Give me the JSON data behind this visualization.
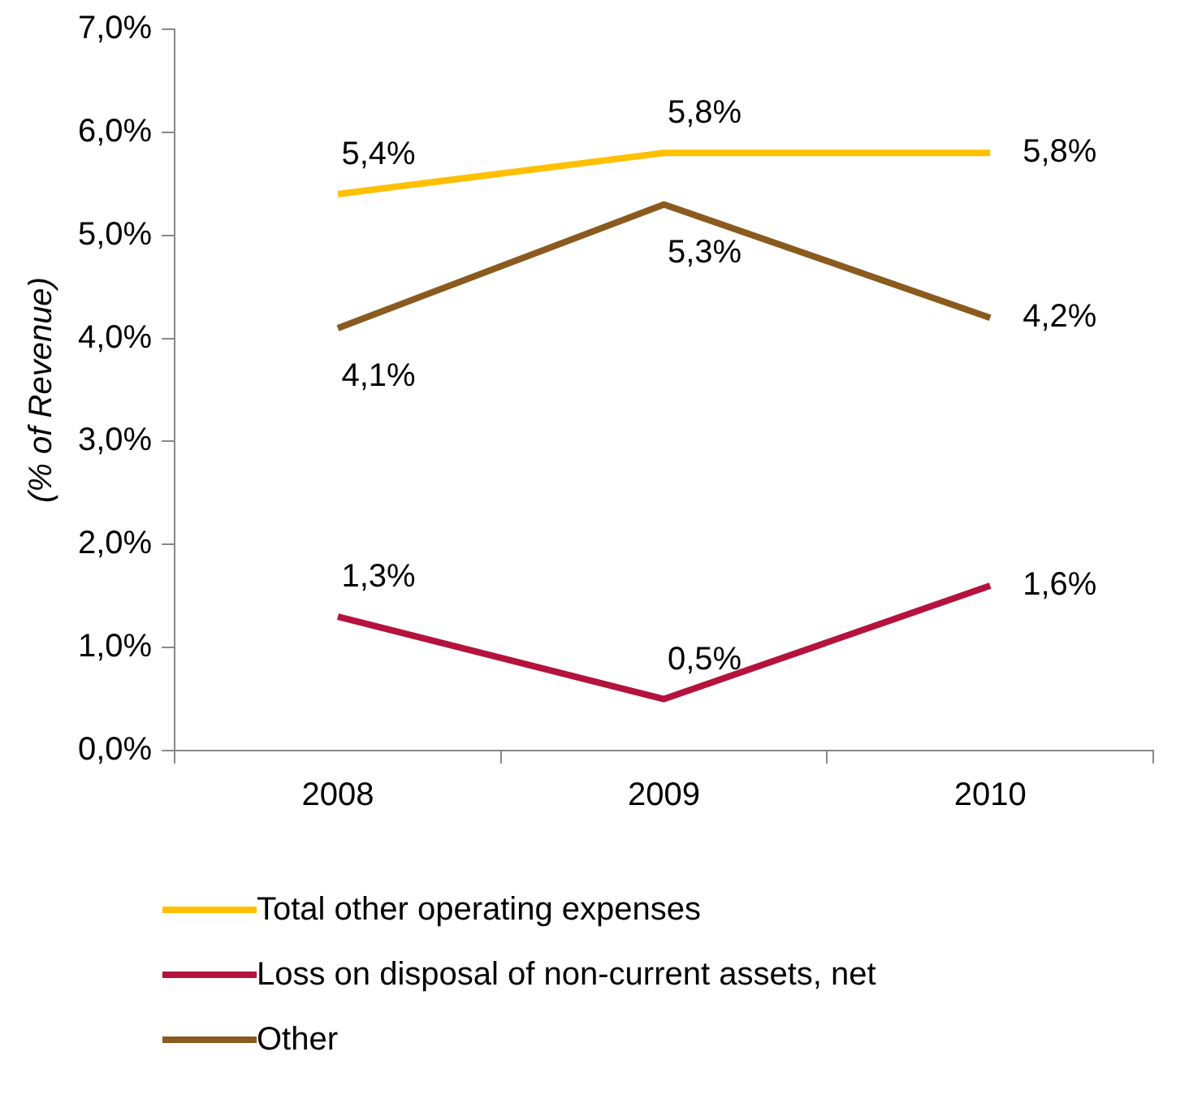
{
  "chart_data": {
    "type": "line",
    "ylabel": "(% of Revenue)",
    "categories": [
      "2008",
      "2009",
      "2010"
    ],
    "ylim": [
      0,
      7
    ],
    "yticks": [
      {
        "value": 0,
        "label": "0,0%"
      },
      {
        "value": 1,
        "label": "1,0%"
      },
      {
        "value": 2,
        "label": "2,0%"
      },
      {
        "value": 3,
        "label": "3,0%"
      },
      {
        "value": 4,
        "label": "4,0%"
      },
      {
        "value": 5,
        "label": "5,0%"
      },
      {
        "value": 6,
        "label": "6,0%"
      },
      {
        "value": 7,
        "label": "7,0%"
      }
    ],
    "grid": false,
    "legend": "bottom",
    "marker": "none",
    "line_style": "solid",
    "series": [
      {
        "name": "Total other operating expenses",
        "color": "#ffc000",
        "values": [
          5.4,
          5.8,
          5.8
        ],
        "value_labels": [
          "5,4%",
          "5,8%",
          "5,8%"
        ]
      },
      {
        "name": "Loss on disposal of non-current assets, net",
        "color": "#b5123e",
        "values": [
          1.3,
          0.5,
          1.6
        ],
        "value_labels": [
          "1,3%",
          "0,5%",
          "1,6%"
        ]
      },
      {
        "name": "Other",
        "color": "#8b5a1e",
        "values": [
          4.1,
          5.3,
          4.2
        ],
        "value_labels": [
          "4,1%",
          "5,3%",
          "4,2%"
        ]
      }
    ]
  }
}
